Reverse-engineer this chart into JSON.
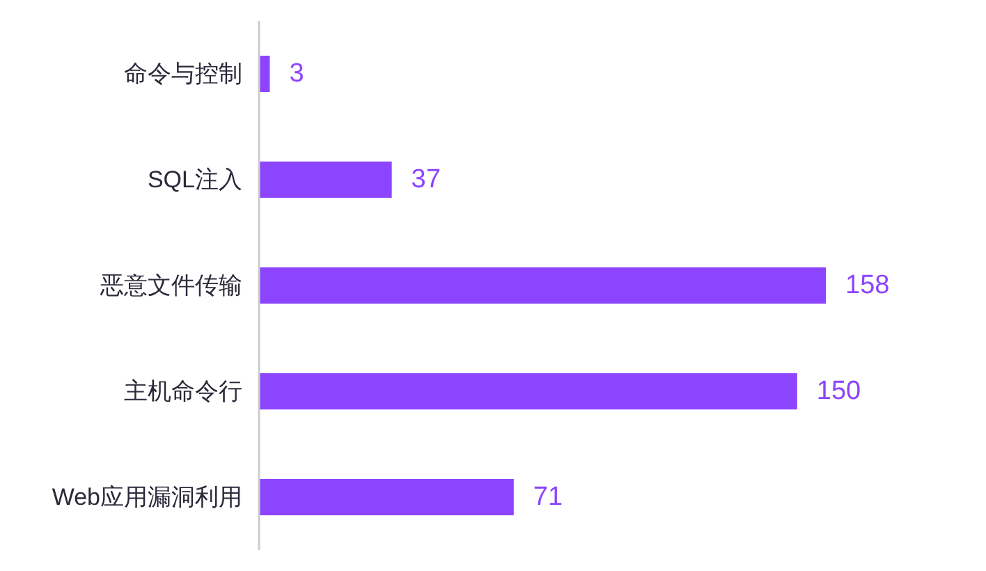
{
  "chart_data": {
    "type": "bar",
    "orientation": "horizontal",
    "categories": [
      "命令与控制",
      "SQL注入",
      "恶意文件传输",
      "主机命令行",
      "Web应用漏洞利用"
    ],
    "values": [
      3,
      37,
      158,
      150,
      71
    ],
    "color": "#8c44ff",
    "data_labels": true
  }
}
